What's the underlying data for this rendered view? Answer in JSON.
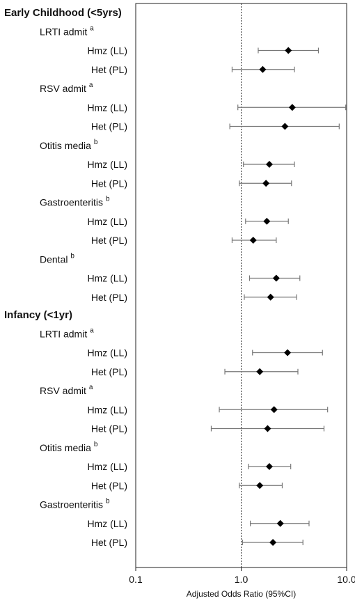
{
  "chart_data": {
    "type": "forest",
    "xlabel": "Adjusted Odds Ratio (95%CI)",
    "x_scale": "log",
    "xlim": [
      0.1,
      10.0
    ],
    "xticks": [
      "0.1",
      "1.0",
      "10.0"
    ],
    "reference_line": 1.0,
    "sections": [
      {
        "title": "Early Childhood (<5yrs)",
        "groups": [
          {
            "label": "LRTI admit",
            "sup": "a",
            "rows": [
              {
                "label": "Hmz (LL)",
                "or": 2.8,
                "lo": 1.45,
                "hi": 5.4
              },
              {
                "label": "Het (PL)",
                "or": 1.6,
                "lo": 0.82,
                "hi": 3.2
              }
            ]
          },
          {
            "label": "RSV admit",
            "sup": "a",
            "rows": [
              {
                "label": "Hmz (LL)",
                "or": 3.05,
                "lo": 0.93,
                "hi": 9.8
              },
              {
                "label": "Het (PL)",
                "or": 2.6,
                "lo": 0.78,
                "hi": 8.5
              }
            ]
          },
          {
            "label": "Otitis media",
            "sup": "b",
            "rows": [
              {
                "label": "Hmz (LL)",
                "or": 1.85,
                "lo": 1.05,
                "hi": 3.2
              },
              {
                "label": "Het (PL)",
                "or": 1.72,
                "lo": 0.96,
                "hi": 3.0
              }
            ]
          },
          {
            "label": "Gastroenteritis",
            "sup": "b",
            "rows": [
              {
                "label": "Hmz (LL)",
                "or": 1.75,
                "lo": 1.1,
                "hi": 2.8
              },
              {
                "label": "Het (PL)",
                "or": 1.3,
                "lo": 0.82,
                "hi": 2.15
              }
            ]
          },
          {
            "label": "Dental",
            "sup": "b",
            "rows": [
              {
                "label": "Hmz (LL)",
                "or": 2.15,
                "lo": 1.2,
                "hi": 3.6
              },
              {
                "label": "Het (PL)",
                "or": 1.9,
                "lo": 1.07,
                "hi": 3.35
              }
            ]
          }
        ]
      },
      {
        "title": "Infancy (<1yr)",
        "groups": [
          {
            "label": "LRTI admit",
            "sup": "a",
            "rows": [
              {
                "label": "Hmz (LL)",
                "or": 2.75,
                "lo": 1.28,
                "hi": 5.9
              },
              {
                "label": "Het (PL)",
                "or": 1.5,
                "lo": 0.7,
                "hi": 3.45
              }
            ]
          },
          {
            "label": "RSV admit",
            "sup": "a",
            "rows": [
              {
                "label": "Hmz (LL)",
                "or": 2.05,
                "lo": 0.62,
                "hi": 6.6
              },
              {
                "label": "Het (PL)",
                "or": 1.78,
                "lo": 0.52,
                "hi": 6.1
              }
            ]
          },
          {
            "label": "Otitis media",
            "sup": "b",
            "rows": [
              {
                "label": "Hmz (LL)",
                "or": 1.85,
                "lo": 1.17,
                "hi": 2.95
              },
              {
                "label": "Het (PL)",
                "or": 1.5,
                "lo": 0.96,
                "hi": 2.45
              }
            ]
          },
          {
            "label": "Gastroenteritis",
            "sup": "b",
            "rows": [
              {
                "label": "Hmz (LL)",
                "or": 2.35,
                "lo": 1.22,
                "hi": 4.4
              },
              {
                "label": "Het (PL)",
                "or": 2.0,
                "lo": 1.03,
                "hi": 3.85
              }
            ]
          }
        ]
      }
    ]
  }
}
